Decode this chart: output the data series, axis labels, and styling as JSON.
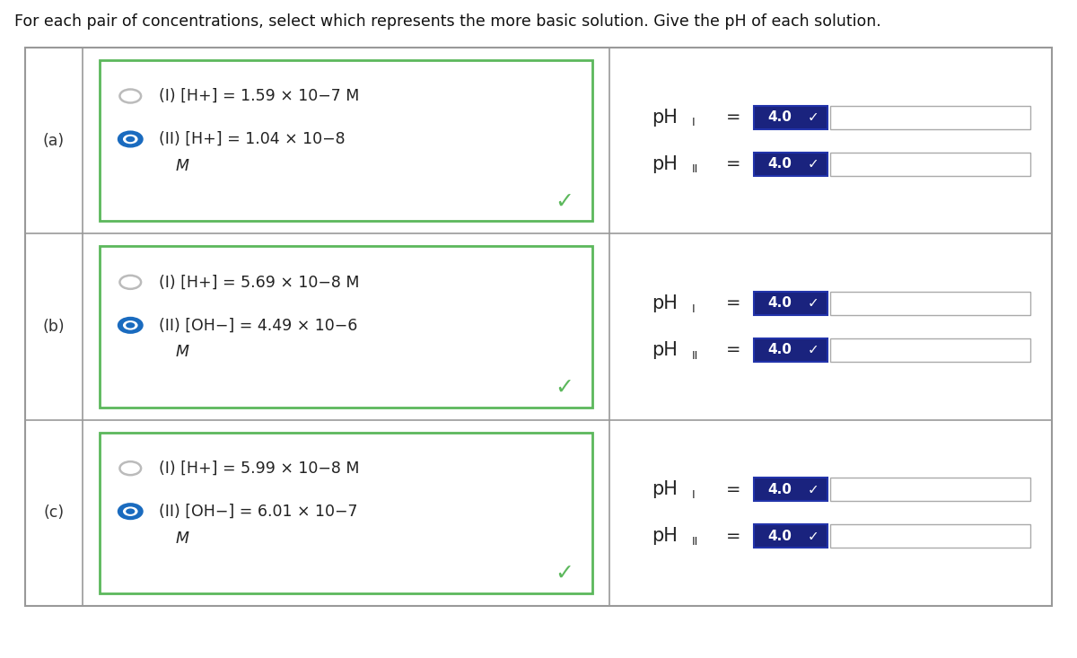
{
  "title": "For each pair of concentrations, select which represents the more basic solution. Give the pH of each solution.",
  "background_color": "#ffffff",
  "rows": [
    {
      "label": "(a)",
      "line1_text": "(I) [H",
      "line1_sup": "+",
      "line1_rest": "] = 1.59 × 10",
      "line1_exp": "−7",
      "line1_tail": " M",
      "line1_italic": true,
      "line2_text": "(II) [H",
      "line2_sup": "+",
      "line2_rest": "] = 1.04 × 10",
      "line2_exp": "−8",
      "line2_tail": "",
      "line3": "M",
      "radio1_filled": false,
      "radio2_filled": true
    },
    {
      "label": "(b)",
      "line1_text": "(I) [H",
      "line1_sup": "+",
      "line1_rest": "] = 5.69 × 10",
      "line1_exp": "−8",
      "line1_tail": " M",
      "line1_italic": true,
      "line2_text": "(II) [OH",
      "line2_sup": "−",
      "line2_rest": "] = 4.49 × 10",
      "line2_exp": "−6",
      "line2_tail": "",
      "line3": "M",
      "radio1_filled": false,
      "radio2_filled": true
    },
    {
      "label": "(c)",
      "line1_text": "(I) [H",
      "line1_sup": "+",
      "line1_rest": "] = 5.99 × 10",
      "line1_exp": "−8",
      "line1_tail": " M",
      "line1_italic": true,
      "line2_text": "(II) [OH",
      "line2_sup": "−",
      "line2_rest": "] = 6.01 × 10",
      "line2_exp": "−7",
      "line2_tail": "",
      "line3": "M",
      "radio1_filled": false,
      "radio2_filled": true
    }
  ],
  "outer_border_color": "#999999",
  "inner_border_color": "#999999",
  "left_box_border": "#5cb85c",
  "radio_empty_color": "#bbbbbb",
  "radio_filled_color": "#1a6bbf",
  "checkmark_color": "#5cb85c",
  "ph_box_bg": "#1a237e",
  "ph_text_color": "#222222",
  "ph_value": "4.0"
}
